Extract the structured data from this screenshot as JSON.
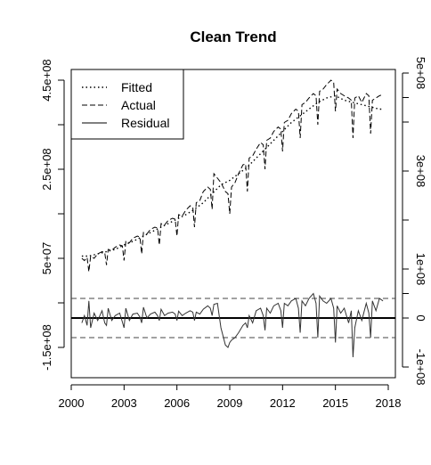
{
  "chart_data": {
    "type": "line",
    "title": "Clean Trend",
    "xlabel": "",
    "ylabel": "",
    "x_ticks": [
      2000,
      2003,
      2006,
      2009,
      2012,
      2015,
      2018
    ],
    "left_axis": {
      "range": [
        -250000000,
        500000000
      ],
      "tick_values": [
        -150000000,
        50000000,
        250000000,
        450000000
      ],
      "tick_labels": [
        "-1.5e+08",
        "5e+07",
        "2.5e+08",
        "4.5e+08"
      ],
      "minor_ticks": [
        -50000000,
        150000000,
        350000000
      ]
    },
    "right_axis": {
      "range": [
        -110000000,
        550000000
      ],
      "tick_values": [
        -100000000,
        0,
        100000000,
        300000000,
        500000000
      ],
      "tick_labels": [
        "-1e+08",
        "0",
        "1e+08",
        "3e+08",
        "5e+08"
      ],
      "minor_ticks": [
        50000000,
        200000000,
        400000000,
        450000000
      ]
    },
    "legend": {
      "position": "top-left",
      "entries": [
        {
          "label": "Fitted",
          "style": "dotted"
        },
        {
          "label": "Actual",
          "style": "dashed"
        },
        {
          "label": "Residual",
          "style": "solid"
        }
      ]
    },
    "residual_bands": [
      -40000000,
      40000000
    ],
    "series": [
      {
        "name": "Actual",
        "x": [
          2000.6,
          2000.75,
          2000.9,
          2001.0,
          2001.1,
          2001.3,
          2001.5,
          2001.75,
          2001.9,
          2002.0,
          2002.1,
          2002.3,
          2002.5,
          2002.75,
          2002.9,
          2003.0,
          2003.1,
          2003.3,
          2003.5,
          2003.75,
          2003.9,
          2004.0,
          2004.1,
          2004.3,
          2004.5,
          2004.75,
          2004.9,
          2005.0,
          2005.1,
          2005.3,
          2005.5,
          2005.75,
          2005.9,
          2006.0,
          2006.1,
          2006.3,
          2006.5,
          2006.75,
          2006.9,
          2007.0,
          2007.1,
          2007.3,
          2007.5,
          2007.75,
          2007.9,
          2008.0,
          2008.1,
          2008.3,
          2008.5,
          2008.75,
          2008.9,
          2009.0,
          2009.1,
          2009.3,
          2009.5,
          2009.75,
          2009.9,
          2010.0,
          2010.1,
          2010.3,
          2010.5,
          2010.75,
          2010.9,
          2011.0,
          2011.1,
          2011.3,
          2011.5,
          2011.75,
          2011.9,
          2012.0,
          2012.1,
          2012.3,
          2012.5,
          2012.75,
          2012.9,
          2013.0,
          2013.1,
          2013.3,
          2013.5,
          2013.75,
          2013.9,
          2014.0,
          2014.1,
          2014.3,
          2014.5,
          2014.75,
          2014.9,
          2015.0,
          2015.1,
          2015.3,
          2015.5,
          2015.75,
          2015.9,
          2016.0,
          2016.1,
          2016.3,
          2016.5,
          2016.75,
          2016.9,
          2017.0,
          2017.1,
          2017.3,
          2017.5,
          2017.7
        ],
        "values": [
          50000000,
          45000000,
          52000000,
          20000000,
          55000000,
          50000000,
          60000000,
          65000000,
          63000000,
          35000000,
          70000000,
          68000000,
          75000000,
          80000000,
          78000000,
          45000000,
          88000000,
          85000000,
          95000000,
          100000000,
          98000000,
          60000000,
          108000000,
          105000000,
          115000000,
          120000000,
          118000000,
          80000000,
          128000000,
          125000000,
          135000000,
          140000000,
          138000000,
          100000000,
          148000000,
          145000000,
          158000000,
          168000000,
          165000000,
          120000000,
          175000000,
          180000000,
          200000000,
          210000000,
          205000000,
          160000000,
          240000000,
          230000000,
          220000000,
          200000000,
          195000000,
          150000000,
          210000000,
          220000000,
          240000000,
          260000000,
          262000000,
          200000000,
          275000000,
          280000000,
          295000000,
          310000000,
          305000000,
          250000000,
          315000000,
          320000000,
          335000000,
          345000000,
          340000000,
          290000000,
          355000000,
          360000000,
          375000000,
          385000000,
          380000000,
          320000000,
          395000000,
          400000000,
          410000000,
          420000000,
          415000000,
          350000000,
          425000000,
          430000000,
          440000000,
          450000000,
          445000000,
          380000000,
          430000000,
          420000000,
          415000000,
          410000000,
          405000000,
          320000000,
          410000000,
          415000000,
          400000000,
          420000000,
          415000000,
          330000000,
          405000000,
          410000000,
          415000000,
          418000000
        ]
      },
      {
        "name": "Fitted",
        "x": [
          2000.6,
          2001.0,
          2001.5,
          2002.0,
          2002.5,
          2003.0,
          2003.5,
          2004.0,
          2004.5,
          2005.0,
          2005.5,
          2006.0,
          2006.5,
          2007.0,
          2007.5,
          2008.0,
          2008.5,
          2009.0,
          2009.5,
          2010.0,
          2010.5,
          2011.0,
          2011.5,
          2012.0,
          2012.5,
          2013.0,
          2013.5,
          2014.0,
          2014.5,
          2015.0,
          2015.5,
          2016.0,
          2016.5,
          2017.0,
          2017.5,
          2017.7
        ],
        "values": [
          55000000,
          55000000,
          60000000,
          65000000,
          70000000,
          80000000,
          88000000,
          98000000,
          108000000,
          118000000,
          128000000,
          138000000,
          148000000,
          160000000,
          175000000,
          195000000,
          215000000,
          225000000,
          240000000,
          255000000,
          275000000,
          295000000,
          315000000,
          335000000,
          355000000,
          370000000,
          385000000,
          400000000,
          410000000,
          415000000,
          405000000,
          400000000,
          395000000,
          390000000,
          385000000,
          385000000
        ]
      },
      {
        "name": "Residual",
        "x": [
          2000.6,
          2000.75,
          2000.9,
          2001.0,
          2001.1,
          2001.3,
          2001.5,
          2001.75,
          2001.9,
          2002.0,
          2002.1,
          2002.3,
          2002.5,
          2002.75,
          2002.9,
          2003.0,
          2003.1,
          2003.3,
          2003.5,
          2003.75,
          2003.9,
          2004.0,
          2004.1,
          2004.3,
          2004.5,
          2004.75,
          2004.9,
          2005.0,
          2005.1,
          2005.3,
          2005.5,
          2005.75,
          2005.9,
          2006.0,
          2006.1,
          2006.3,
          2006.5,
          2006.75,
          2006.9,
          2007.0,
          2007.1,
          2007.3,
          2007.5,
          2007.75,
          2007.9,
          2008.0,
          2008.1,
          2008.3,
          2008.5,
          2008.75,
          2008.9,
          2009.0,
          2009.1,
          2009.3,
          2009.5,
          2009.75,
          2009.9,
          2010.0,
          2010.1,
          2010.3,
          2010.5,
          2010.75,
          2010.9,
          2011.0,
          2011.1,
          2011.3,
          2011.5,
          2011.75,
          2011.9,
          2012.0,
          2012.1,
          2012.3,
          2012.5,
          2012.75,
          2012.9,
          2013.0,
          2013.1,
          2013.3,
          2013.5,
          2013.75,
          2013.9,
          2014.0,
          2014.1,
          2014.3,
          2014.5,
          2014.75,
          2014.9,
          2015.0,
          2015.1,
          2015.3,
          2015.5,
          2015.75,
          2015.9,
          2016.0,
          2016.1,
          2016.3,
          2016.5,
          2016.75,
          2016.9,
          2017.0,
          2017.1,
          2017.3,
          2017.5,
          2017.7
        ],
        "values": [
          -10000000,
          5000000,
          -15000000,
          35000000,
          -20000000,
          10000000,
          -5000000,
          15000000,
          -10000000,
          -15000000,
          20000000,
          -5000000,
          5000000,
          10000000,
          -8000000,
          -20000000,
          20000000,
          -5000000,
          8000000,
          10000000,
          2000000,
          -10000000,
          22000000,
          0,
          8000000,
          12000000,
          5000000,
          -5000000,
          18000000,
          5000000,
          10000000,
          12000000,
          8000000,
          -5000000,
          14000000,
          5000000,
          10000000,
          15000000,
          12000000,
          -5000000,
          12000000,
          8000000,
          18000000,
          25000000,
          20000000,
          5000000,
          28000000,
          30000000,
          -20000000,
          -55000000,
          -60000000,
          -50000000,
          -45000000,
          -40000000,
          -30000000,
          -15000000,
          -10000000,
          -20000000,
          5000000,
          -10000000,
          15000000,
          20000000,
          5000000,
          -25000000,
          20000000,
          10000000,
          25000000,
          30000000,
          15000000,
          -20000000,
          30000000,
          25000000,
          35000000,
          40000000,
          20000000,
          -30000000,
          35000000,
          25000000,
          40000000,
          50000000,
          30000000,
          -40000000,
          45000000,
          35000000,
          30000000,
          40000000,
          20000000,
          -50000000,
          25000000,
          10000000,
          20000000,
          -10000000,
          15000000,
          -80000000,
          -20000000,
          15000000,
          -5000000,
          30000000,
          10000000,
          -40000000,
          35000000,
          15000000,
          40000000,
          35000000
        ]
      }
    ]
  }
}
